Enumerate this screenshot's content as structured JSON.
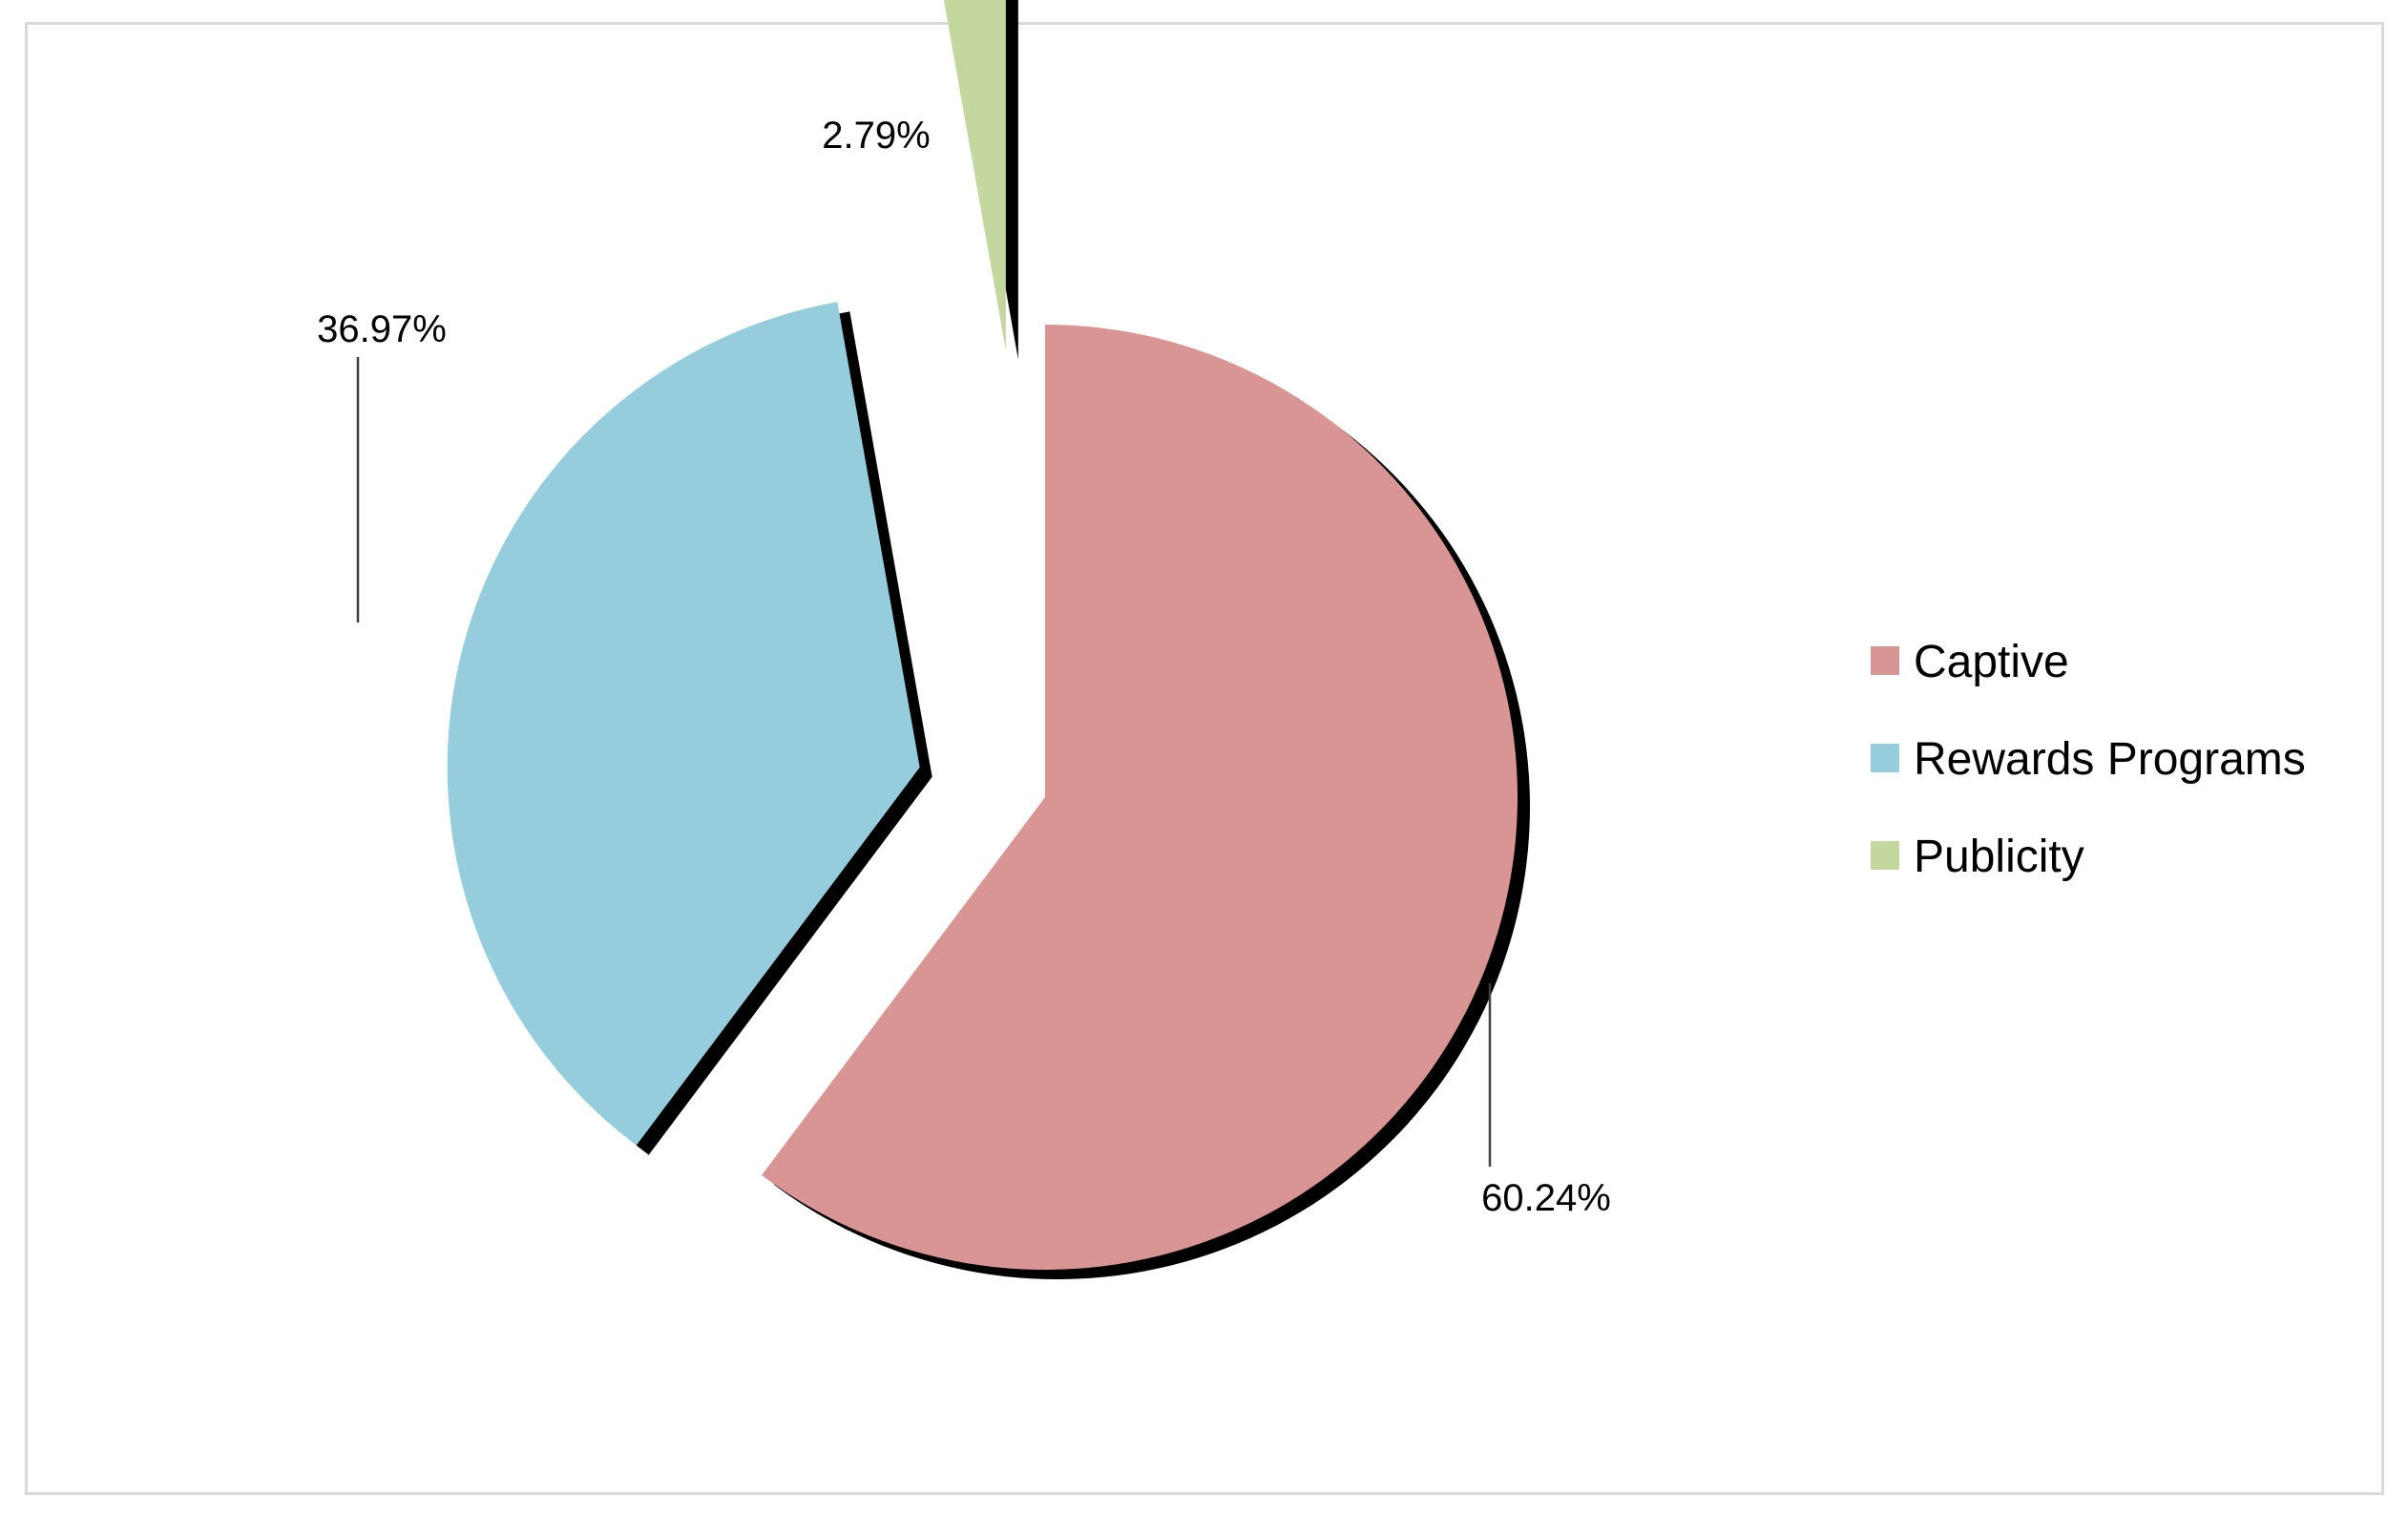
{
  "chart_data": {
    "type": "pie",
    "title": "",
    "categories": [
      "Captive",
      "Rewards Programs",
      "Publicity"
    ],
    "values": [
      60.24,
      36.97,
      2.79
    ],
    "data_labels": [
      "60.24%",
      "36.97%",
      "2.79%"
    ],
    "colors": [
      "#d99594",
      "#95cddd",
      "#c4d79f"
    ],
    "exploded": true,
    "legend": {
      "placement": "right",
      "entries": [
        "Captive",
        "Rewards Programs",
        "Publicity"
      ]
    }
  }
}
